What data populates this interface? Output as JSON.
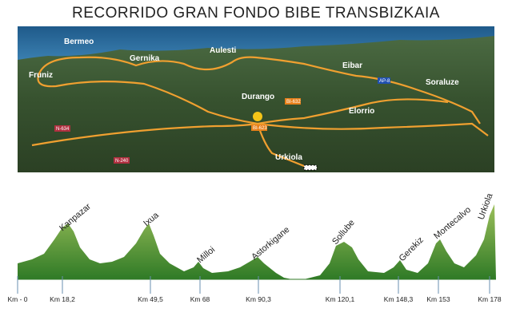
{
  "header": {
    "title": "RECORRIDO GRAN FONDO BIBE TRANSBIZKAIA"
  },
  "map": {
    "places": [
      "Bermeo",
      "Gernika",
      "Aulesti",
      "Eibar",
      "Soraluze",
      "Fruniz",
      "Durango",
      "Elorrio",
      "Urkiola"
    ],
    "roads": [
      "BI-632",
      "BI-623",
      "N-634",
      "AP-8",
      "N-240"
    ]
  },
  "profile": {
    "peaks": [
      "Kanpazar",
      "Ixua",
      "Milloi",
      "Astorkigane",
      "Sollube",
      "Gerekiz",
      "Montecalvo",
      "Urkiola"
    ],
    "km_labels": [
      "Km - 0",
      "Km 18,2",
      "Km 49,5",
      "Km 68",
      "Km 90,3",
      "Km 120,1",
      "Km 148,3",
      "Km 153",
      "Km 178"
    ]
  }
}
